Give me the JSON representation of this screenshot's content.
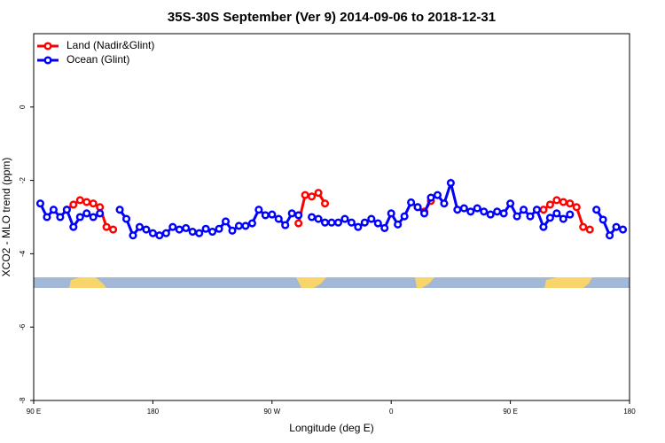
{
  "chart_data": {
    "type": "line",
    "title": "35S-30S September (Ver 9)   2014-09-06 to 2018-12-31",
    "x_label": "Longitude (deg E)",
    "y_label": "XCO2 - MLO trend (ppm)",
    "x": [
      95,
      100,
      105,
      110,
      115,
      120,
      125,
      130,
      135,
      140,
      145,
      150,
      155,
      160,
      165,
      170,
      175,
      180,
      185,
      190,
      195,
      200,
      205,
      210,
      215,
      220,
      225,
      230,
      235,
      240,
      245,
      250,
      255,
      260,
      265,
      270,
      275,
      280,
      285,
      290,
      295,
      300,
      305,
      310,
      315,
      320,
      325,
      330,
      335,
      340,
      345,
      350,
      355,
      360,
      365,
      370,
      375,
      380,
      385,
      390,
      395,
      400,
      405,
      410,
      415,
      420,
      425,
      430,
      435,
      440,
      445,
      450,
      455,
      460,
      465,
      470,
      475,
      480,
      485,
      490,
      495,
      500,
      505,
      510,
      515,
      520,
      525,
      530,
      535
    ],
    "series": [
      {
        "name": "Land (Nadir&Glint)",
        "color": "#ff0000",
        "values": [
          null,
          null,
          null,
          null,
          -2.8,
          -2.66,
          -2.54,
          -2.59,
          -2.63,
          -2.73,
          -3.27,
          -3.34,
          null,
          null,
          null,
          null,
          null,
          null,
          null,
          null,
          null,
          null,
          null,
          null,
          null,
          null,
          null,
          null,
          null,
          null,
          null,
          null,
          null,
          null,
          null,
          null,
          null,
          null,
          null,
          -3.17,
          -2.4,
          -2.44,
          -2.34,
          -2.63,
          null,
          null,
          null,
          null,
          null,
          null,
          null,
          null,
          null,
          null,
          null,
          null,
          null,
          -2.73,
          -2.85,
          -2.56,
          null,
          null,
          null,
          null,
          null,
          null,
          null,
          null,
          null,
          null,
          null,
          null,
          null,
          null,
          null,
          null,
          -2.8,
          -2.66,
          -2.54,
          -2.59,
          -2.63,
          -2.73,
          -3.27,
          -3.34,
          null,
          null,
          null,
          null,
          null
        ]
      },
      {
        "name": "Ocean (Glint)",
        "color": "#0000ff",
        "values": [
          -2.63,
          -3.0,
          -2.8,
          -3.0,
          -2.8,
          -3.27,
          -3.0,
          -2.9,
          -3.0,
          -2.9,
          null,
          null,
          -2.8,
          -3.05,
          -3.5,
          -3.27,
          -3.34,
          -3.44,
          -3.5,
          -3.44,
          -3.27,
          -3.34,
          -3.3,
          -3.4,
          -3.44,
          -3.32,
          -3.4,
          -3.32,
          -3.12,
          -3.37,
          -3.24,
          -3.24,
          -3.17,
          -2.8,
          -2.95,
          -2.93,
          -3.05,
          -3.22,
          -2.9,
          -2.95,
          null,
          -3.0,
          -3.05,
          -3.15,
          -3.15,
          -3.15,
          -3.05,
          -3.15,
          -3.27,
          -3.15,
          -3.05,
          -3.17,
          -3.3,
          -2.9,
          -3.2,
          -2.98,
          -2.6,
          -2.73,
          -2.9,
          -2.47,
          -2.4,
          -2.63,
          -2.07,
          -2.8,
          -2.76,
          -2.85,
          -2.76,
          -2.85,
          -2.93,
          -2.85,
          -2.9,
          -2.63,
          -2.98,
          -2.8,
          -2.98,
          -2.8,
          -3.27,
          -3.02,
          -2.9,
          -3.05,
          -2.93,
          null,
          null,
          null,
          -2.8,
          -3.07,
          -3.5,
          -3.27,
          -3.34
        ]
      }
    ],
    "xlim": [
      90,
      540
    ],
    "xticks": [
      {
        "value": 90,
        "label": "90 E"
      },
      {
        "value": 180,
        "label": "180"
      },
      {
        "value": 270,
        "label": "90 W"
      },
      {
        "value": 360,
        "label": "0"
      },
      {
        "value": 450,
        "label": "90 E"
      },
      {
        "value": 540,
        "label": "180"
      }
    ],
    "ylim": [
      -8,
      2
    ],
    "yticks": [
      -8,
      -6,
      -4,
      -2,
      0
    ],
    "legend": "top-left"
  }
}
